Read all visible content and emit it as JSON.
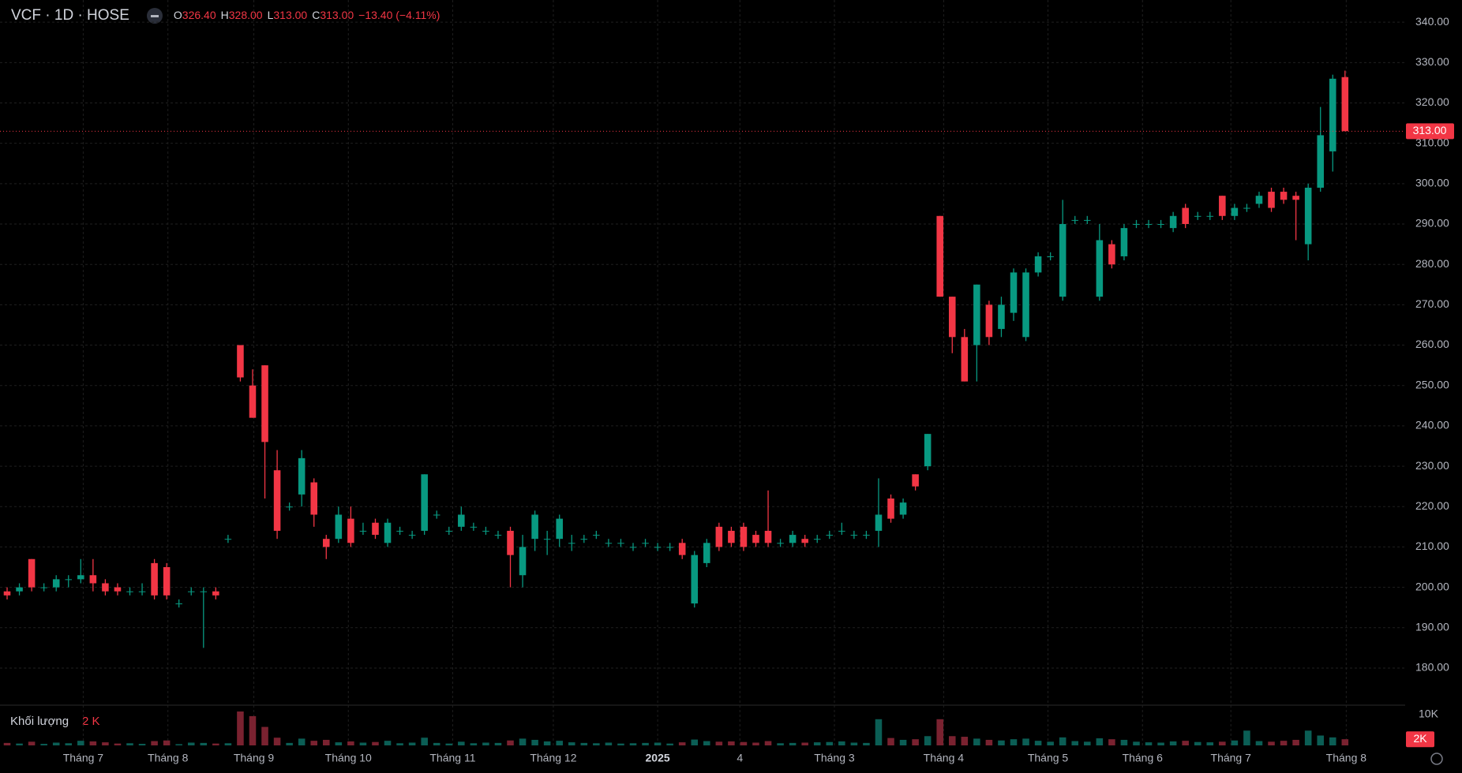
{
  "chart_data": {
    "type": "candlestick",
    "header": {
      "symbol": "VCF · 1D · HOSE",
      "ohlc": [
        {
          "label": "O",
          "value": "326.40"
        },
        {
          "label": "H",
          "value": "328.00"
        },
        {
          "label": "L",
          "value": "313.00"
        },
        {
          "label": "C",
          "value": "313.00"
        }
      ],
      "change": "−13.40 (−4.11%)"
    },
    "volume_title": "Khối lượng",
    "volume_value_label": "2 K",
    "up_color": "#089981",
    "down_color": "#f23645",
    "volume_up_color": "#0b5e55",
    "volume_down_color": "#7a2230",
    "open": [
      199,
      199,
      207,
      200,
      200,
      202,
      202,
      203,
      201,
      200,
      199,
      199,
      206,
      205,
      196,
      199,
      199,
      199,
      212,
      260,
      250,
      255,
      229,
      220,
      223,
      226,
      212,
      212,
      217,
      214,
      216,
      211,
      214,
      213,
      214,
      218,
      214,
      215,
      215,
      214,
      213,
      214,
      203,
      212,
      212,
      212,
      211,
      212,
      213,
      211,
      211,
      210,
      211,
      210,
      210,
      211,
      196,
      206,
      215,
      214,
      215,
      213,
      214,
      211,
      211,
      212,
      212,
      213,
      214,
      213,
      213,
      214,
      222,
      218,
      228,
      230,
      292,
      272,
      262,
      260,
      270,
      264,
      268,
      262,
      278,
      282,
      272,
      291,
      291,
      272,
      285,
      282,
      290,
      290,
      290,
      289,
      294,
      292,
      292,
      297,
      292,
      294,
      295,
      298,
      298,
      297,
      285,
      299,
      308,
      326.4
    ],
    "high": [
      200,
      201,
      207,
      201,
      203,
      203,
      207,
      207,
      202,
      201,
      200,
      201,
      207,
      206,
      197,
      200,
      200,
      200,
      213,
      260,
      254,
      255,
      234,
      221,
      234,
      227,
      213,
      220,
      220,
      216,
      217,
      217,
      215,
      214,
      228,
      219,
      215,
      220,
      216,
      215,
      214,
      215,
      213,
      219,
      214,
      218,
      213,
      213,
      214,
      212,
      212,
      211,
      212,
      211,
      211,
      212,
      209,
      212,
      216,
      215,
      216,
      214,
      224,
      212,
      214,
      213,
      213,
      214,
      216,
      214,
      214,
      227,
      223,
      222,
      228,
      238,
      292,
      272,
      264,
      275,
      271,
      272,
      279,
      279,
      283,
      283,
      296,
      292,
      292,
      290,
      286,
      290,
      291,
      291,
      291,
      293,
      295,
      293,
      293,
      297,
      295,
      295,
      298,
      299,
      299,
      298,
      300,
      319,
      327,
      328
    ],
    "low": [
      197,
      198,
      199,
      199,
      199,
      200,
      201,
      199,
      198,
      198,
      198,
      198,
      197,
      197,
      195,
      198,
      185,
      197,
      211,
      251,
      242,
      222,
      212,
      219,
      220,
      215,
      207,
      211,
      210,
      213,
      212,
      210,
      213,
      212,
      213,
      217,
      213,
      214,
      214,
      213,
      212,
      200,
      200,
      209,
      208,
      210,
      209,
      211,
      212,
      210,
      210,
      209,
      210,
      209,
      209,
      207,
      195,
      205,
      209,
      210,
      209,
      210,
      210,
      210,
      210,
      210,
      211,
      212,
      213,
      212,
      212,
      210,
      216,
      217,
      224,
      229,
      272,
      258,
      251,
      251,
      260,
      262,
      266,
      261,
      277,
      281,
      271,
      290,
      290,
      271,
      279,
      281,
      289,
      289,
      289,
      288,
      289,
      291,
      291,
      291,
      291,
      293,
      294,
      293,
      295,
      286,
      281,
      298,
      303,
      313
    ],
    "close": [
      198,
      200,
      200,
      200,
      202,
      202,
      203,
      201,
      199,
      199,
      199,
      199,
      198,
      198,
      196,
      199,
      199,
      198,
      212,
      252,
      242,
      236,
      214,
      220,
      232,
      218,
      210,
      218,
      211,
      214,
      213,
      216,
      214,
      213,
      228,
      218,
      214,
      218,
      215,
      214,
      213,
      208,
      210,
      218,
      212,
      217,
      211,
      212,
      213,
      211,
      211,
      210,
      211,
      210,
      210,
      208,
      208,
      211,
      210,
      211,
      210,
      211,
      211,
      211,
      213,
      211,
      212,
      213,
      214,
      213,
      213,
      218,
      217,
      221,
      225,
      238,
      272,
      262,
      251,
      275,
      262,
      270,
      278,
      278,
      282,
      282,
      290,
      291,
      291,
      286,
      280,
      289,
      290,
      290,
      290,
      292,
      290,
      292,
      292,
      292,
      294,
      294,
      297,
      294,
      296,
      296,
      299,
      312,
      326,
      313
    ],
    "volume": [
      800,
      600,
      1200,
      500,
      900,
      700,
      1500,
      1300,
      1000,
      600,
      700,
      500,
      1400,
      1600,
      400,
      900,
      800,
      600,
      700,
      11000,
      9500,
      6000,
      2500,
      800,
      2200,
      1500,
      1800,
      1000,
      1300,
      900,
      1100,
      1500,
      700,
      900,
      2500,
      800,
      600,
      1200,
      700,
      900,
      800,
      1600,
      2200,
      1800,
      1300,
      1500,
      1000,
      800,
      700,
      900,
      600,
      700,
      800,
      900,
      600,
      1000,
      1900,
      1400,
      1200,
      1300,
      1100,
      900,
      1400,
      700,
      800,
      900,
      1000,
      1100,
      1300,
      900,
      800,
      8500,
      2400,
      1800,
      2000,
      3000,
      8500,
      3000,
      2800,
      2200,
      1800,
      1600,
      2000,
      2200,
      1500,
      1200,
      2600,
      1400,
      1200,
      2300,
      2000,
      1800,
      1200,
      1000,
      900,
      1300,
      1500,
      1100,
      1000,
      1200,
      1600,
      4800,
      1400,
      1200,
      1500,
      1800,
      4800,
      3200,
      2600,
      2000
    ],
    "last_price_label": "313.00",
    "last_volume_label": "2K",
    "xlim": [
      -0.58,
      113.9
    ],
    "xticks": [
      {
        "value": 6.2,
        "label": "Tháng 7"
      },
      {
        "value": 13.1,
        "label": "Tháng 8"
      },
      {
        "value": 20.1,
        "label": "Tháng 9"
      },
      {
        "value": 27.8,
        "label": "Tháng 10"
      },
      {
        "value": 36.3,
        "label": "Tháng 11"
      },
      {
        "value": 44.5,
        "label": "Tháng 12"
      },
      {
        "value": 53.0,
        "label": "2025"
      },
      {
        "value": 59.7,
        "label": "4"
      },
      {
        "value": 67.4,
        "label": "Tháng 3"
      },
      {
        "value": 76.3,
        "label": "Tháng 4"
      },
      {
        "value": 84.8,
        "label": "Tháng 5"
      },
      {
        "value": 92.5,
        "label": "Tháng 6"
      },
      {
        "value": 99.7,
        "label": "Tháng 7"
      },
      {
        "value": 109.1,
        "label": "Tháng 8"
      }
    ],
    "ylim": [
      171,
      345.5
    ],
    "yticks": [
      {
        "value": 180,
        "label": "180.00"
      },
      {
        "value": 190,
        "label": "190.00"
      },
      {
        "value": 200,
        "label": "200.00"
      },
      {
        "value": 210,
        "label": "210.00"
      },
      {
        "value": 220,
        "label": "220.00"
      },
      {
        "value": 230,
        "label": "230.00"
      },
      {
        "value": 240,
        "label": "240.00"
      },
      {
        "value": 250,
        "label": "250.00"
      },
      {
        "value": 260,
        "label": "260.00"
      },
      {
        "value": 270,
        "label": "270.00"
      },
      {
        "value": 280,
        "label": "280.00"
      },
      {
        "value": 290,
        "label": "290.00"
      },
      {
        "value": 300,
        "label": "300.00"
      },
      {
        "value": 310,
        "label": "310.00"
      },
      {
        "value": 320,
        "label": "320.00"
      },
      {
        "value": 330,
        "label": "330.00"
      },
      {
        "value": 340,
        "label": "340.00"
      }
    ],
    "vlim": [
      0,
      12800
    ],
    "vticks": [
      {
        "value": 10000,
        "label": "10K"
      }
    ],
    "grid": true
  }
}
